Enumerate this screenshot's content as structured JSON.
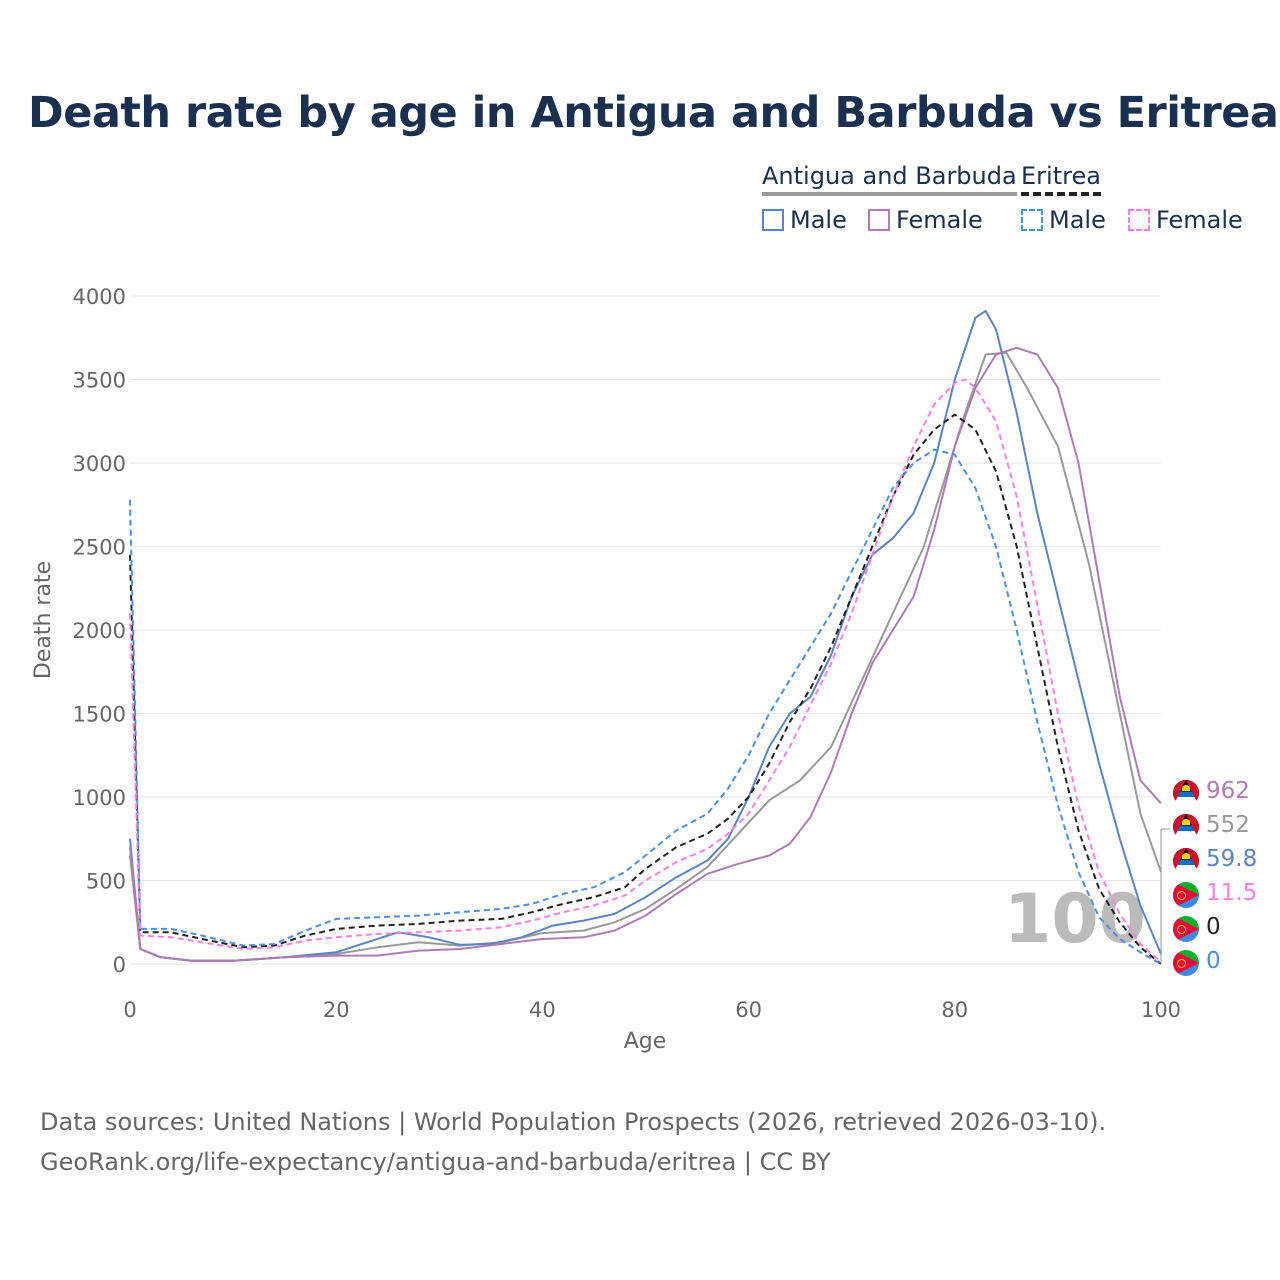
{
  "title": "Death rate by age in Antigua and Barbuda vs Eritrea",
  "legend": {
    "group1": "Antigua and Barbuda",
    "group2": "Eritrea",
    "items": [
      "Male",
      "Female",
      "Male",
      "Female"
    ]
  },
  "colors": {
    "ab_total": "#999999",
    "ab_male": "#5b84c4",
    "ab_female": "#b07ab5",
    "er_total": "#222222",
    "er_male": "#4a90e2",
    "er_female": "#ff80e0"
  },
  "footer": {
    "line1": "Data sources: United Nations | World Population Prospects (2026, retrieved 2026-03-10).",
    "line2": "GeoRank.org/life-expectancy/antigua-and-barbuda/eritrea | CC BY"
  },
  "watermark": "100",
  "end_labels": [
    "962",
    "552",
    "59.8",
    "11.5",
    "0",
    "0"
  ],
  "chart_data": {
    "type": "line",
    "xlabel": "Age",
    "ylabel": "Death rate",
    "xlim": [
      0,
      100
    ],
    "ylim": [
      0,
      4000
    ],
    "xticks": [
      0,
      20,
      40,
      60,
      80,
      100
    ],
    "yticks": [
      0,
      500,
      1000,
      1500,
      2000,
      2500,
      3000,
      3500,
      4000
    ],
    "series": [
      {
        "name": "Antigua and Barbuda",
        "key": "ab_total",
        "dashed": false,
        "points": [
          [
            0,
            650
          ],
          [
            1,
            90
          ],
          [
            3,
            40
          ],
          [
            6,
            20
          ],
          [
            10,
            20
          ],
          [
            15,
            40
          ],
          [
            20,
            60
          ],
          [
            24,
            100
          ],
          [
            28,
            130
          ],
          [
            32,
            110
          ],
          [
            36,
            130
          ],
          [
            40,
            185
          ],
          [
            44,
            200
          ],
          [
            47,
            250
          ],
          [
            50,
            330
          ],
          [
            53,
            450
          ],
          [
            56,
            580
          ],
          [
            59,
            780
          ],
          [
            62,
            980
          ],
          [
            65,
            1100
          ],
          [
            68,
            1300
          ],
          [
            71,
            1700
          ],
          [
            74,
            2100
          ],
          [
            77,
            2500
          ],
          [
            79,
            2900
          ],
          [
            81,
            3300
          ],
          [
            83,
            3650
          ],
          [
            85,
            3660
          ],
          [
            87,
            3450
          ],
          [
            90,
            3100
          ],
          [
            93,
            2400
          ],
          [
            96,
            1500
          ],
          [
            98,
            900
          ],
          [
            100,
            552
          ]
        ]
      },
      {
        "name": "Antigua and Barbuda Male",
        "key": "ab_male",
        "dashed": false,
        "points": [
          [
            0,
            750
          ],
          [
            1,
            90
          ],
          [
            3,
            40
          ],
          [
            6,
            20
          ],
          [
            10,
            20
          ],
          [
            15,
            40
          ],
          [
            20,
            70
          ],
          [
            23,
            130
          ],
          [
            26,
            190
          ],
          [
            29,
            160
          ],
          [
            32,
            115
          ],
          [
            35,
            120
          ],
          [
            38,
            160
          ],
          [
            41,
            230
          ],
          [
            44,
            260
          ],
          [
            47,
            300
          ],
          [
            50,
            400
          ],
          [
            53,
            520
          ],
          [
            56,
            620
          ],
          [
            58,
            750
          ],
          [
            60,
            1000
          ],
          [
            62,
            1300
          ],
          [
            64,
            1500
          ],
          [
            66,
            1600
          ],
          [
            68,
            1850
          ],
          [
            70,
            2200
          ],
          [
            72,
            2450
          ],
          [
            74,
            2550
          ],
          [
            76,
            2700
          ],
          [
            78,
            3000
          ],
          [
            80,
            3500
          ],
          [
            82,
            3870
          ],
          [
            83,
            3910
          ],
          [
            84,
            3800
          ],
          [
            86,
            3300
          ],
          [
            88,
            2700
          ],
          [
            90,
            2200
          ],
          [
            92,
            1700
          ],
          [
            94,
            1200
          ],
          [
            96,
            750
          ],
          [
            98,
            350
          ],
          [
            100,
            60
          ]
        ]
      },
      {
        "name": "Antigua and Barbuda Female",
        "key": "ab_female",
        "dashed": false,
        "points": [
          [
            0,
            700
          ],
          [
            1,
            90
          ],
          [
            3,
            40
          ],
          [
            6,
            20
          ],
          [
            10,
            20
          ],
          [
            15,
            40
          ],
          [
            20,
            50
          ],
          [
            24,
            50
          ],
          [
            28,
            80
          ],
          [
            32,
            90
          ],
          [
            36,
            120
          ],
          [
            40,
            150
          ],
          [
            44,
            160
          ],
          [
            47,
            200
          ],
          [
            50,
            290
          ],
          [
            53,
            420
          ],
          [
            56,
            540
          ],
          [
            59,
            600
          ],
          [
            62,
            650
          ],
          [
            64,
            720
          ],
          [
            66,
            880
          ],
          [
            68,
            1150
          ],
          [
            70,
            1500
          ],
          [
            72,
            1800
          ],
          [
            74,
            2000
          ],
          [
            76,
            2200
          ],
          [
            78,
            2600
          ],
          [
            80,
            3100
          ],
          [
            82,
            3450
          ],
          [
            84,
            3650
          ],
          [
            86,
            3690
          ],
          [
            88,
            3650
          ],
          [
            90,
            3450
          ],
          [
            92,
            3000
          ],
          [
            94,
            2300
          ],
          [
            96,
            1600
          ],
          [
            98,
            1100
          ],
          [
            100,
            962
          ]
        ]
      },
      {
        "name": "Eritrea",
        "key": "er_total",
        "dashed": true,
        "points": [
          [
            0,
            2450
          ],
          [
            1,
            190
          ],
          [
            4,
            190
          ],
          [
            7,
            150
          ],
          [
            11,
            100
          ],
          [
            14,
            110
          ],
          [
            17,
            170
          ],
          [
            20,
            210
          ],
          [
            24,
            230
          ],
          [
            28,
            240
          ],
          [
            32,
            260
          ],
          [
            36,
            270
          ],
          [
            39,
            310
          ],
          [
            42,
            360
          ],
          [
            45,
            400
          ],
          [
            48,
            460
          ],
          [
            50,
            570
          ],
          [
            53,
            700
          ],
          [
            56,
            780
          ],
          [
            58,
            870
          ],
          [
            60,
            1000
          ],
          [
            62,
            1200
          ],
          [
            64,
            1450
          ],
          [
            66,
            1650
          ],
          [
            68,
            1900
          ],
          [
            70,
            2200
          ],
          [
            72,
            2500
          ],
          [
            74,
            2800
          ],
          [
            76,
            3050
          ],
          [
            78,
            3200
          ],
          [
            80,
            3290
          ],
          [
            82,
            3200
          ],
          [
            84,
            2950
          ],
          [
            86,
            2500
          ],
          [
            88,
            1900
          ],
          [
            90,
            1300
          ],
          [
            92,
            800
          ],
          [
            94,
            450
          ],
          [
            96,
            250
          ],
          [
            98,
            100
          ],
          [
            100,
            0
          ]
        ]
      },
      {
        "name": "Eritrea Male",
        "key": "er_male",
        "dashed": true,
        "points": [
          [
            0,
            2780
          ],
          [
            1,
            210
          ],
          [
            4,
            210
          ],
          [
            7,
            170
          ],
          [
            11,
            110
          ],
          [
            14,
            120
          ],
          [
            17,
            200
          ],
          [
            20,
            270
          ],
          [
            24,
            280
          ],
          [
            28,
            290
          ],
          [
            32,
            310
          ],
          [
            36,
            330
          ],
          [
            39,
            360
          ],
          [
            42,
            420
          ],
          [
            45,
            460
          ],
          [
            48,
            550
          ],
          [
            50,
            650
          ],
          [
            53,
            800
          ],
          [
            56,
            900
          ],
          [
            58,
            1050
          ],
          [
            60,
            1250
          ],
          [
            62,
            1500
          ],
          [
            64,
            1700
          ],
          [
            66,
            1900
          ],
          [
            68,
            2100
          ],
          [
            70,
            2350
          ],
          [
            72,
            2600
          ],
          [
            74,
            2850
          ],
          [
            76,
            3000
          ],
          [
            78,
            3080
          ],
          [
            80,
            3050
          ],
          [
            82,
            2850
          ],
          [
            84,
            2500
          ],
          [
            86,
            2000
          ],
          [
            88,
            1450
          ],
          [
            90,
            950
          ],
          [
            92,
            550
          ],
          [
            94,
            280
          ],
          [
            96,
            150
          ],
          [
            98,
            70
          ],
          [
            100,
            0
          ]
        ]
      },
      {
        "name": "Eritrea Female",
        "key": "er_female",
        "dashed": true,
        "points": [
          [
            0,
            2100
          ],
          [
            1,
            170
          ],
          [
            4,
            160
          ],
          [
            7,
            130
          ],
          [
            11,
            90
          ],
          [
            14,
            100
          ],
          [
            17,
            140
          ],
          [
            20,
            160
          ],
          [
            24,
            180
          ],
          [
            28,
            190
          ],
          [
            32,
            200
          ],
          [
            36,
            220
          ],
          [
            39,
            260
          ],
          [
            42,
            310
          ],
          [
            45,
            350
          ],
          [
            48,
            410
          ],
          [
            50,
            500
          ],
          [
            53,
            610
          ],
          [
            56,
            690
          ],
          [
            58,
            780
          ],
          [
            60,
            900
          ],
          [
            62,
            1100
          ],
          [
            64,
            1300
          ],
          [
            66,
            1550
          ],
          [
            68,
            1800
          ],
          [
            70,
            2100
          ],
          [
            72,
            2450
          ],
          [
            74,
            2800
          ],
          [
            76,
            3100
          ],
          [
            78,
            3350
          ],
          [
            80,
            3480
          ],
          [
            81,
            3500
          ],
          [
            82,
            3450
          ],
          [
            84,
            3250
          ],
          [
            86,
            2800
          ],
          [
            88,
            2150
          ],
          [
            90,
            1500
          ],
          [
            92,
            950
          ],
          [
            94,
            550
          ],
          [
            96,
            300
          ],
          [
            98,
            120
          ],
          [
            100,
            11.5
          ]
        ]
      }
    ]
  }
}
